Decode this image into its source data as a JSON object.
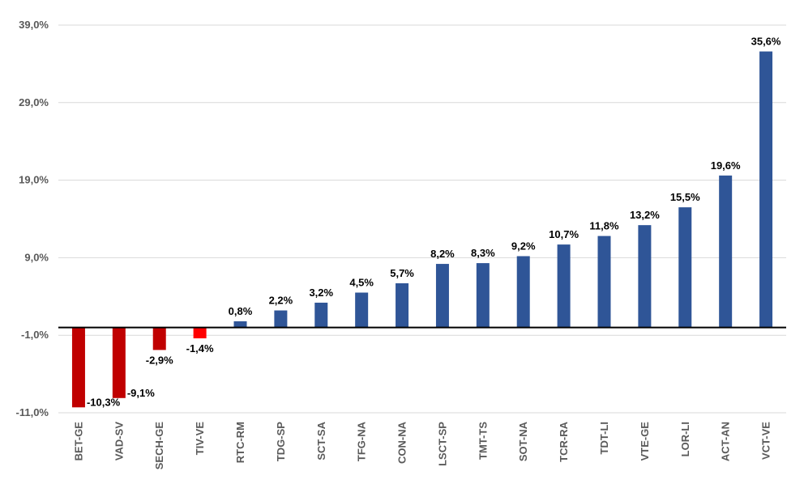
{
  "chart_data": {
    "type": "bar",
    "title": "",
    "xlabel": "",
    "ylabel": "",
    "ylim": [
      -11,
      39
    ],
    "yticks": [
      -11,
      -1,
      9,
      19,
      29,
      39
    ],
    "ytick_labels": [
      "-11,0%",
      "-1,0%",
      "9,0%",
      "19,0%",
      "29,0%",
      "39,0%"
    ],
    "grid": true,
    "legend": "none",
    "categories": [
      "BET-GE",
      "VAD-SV",
      "SECH-GE",
      "TIV-VE",
      "RTC-RM",
      "TDG-SP",
      "SCT-SA",
      "TFG-NA",
      "CON-NA",
      "LSCT-SP",
      "TMT-TS",
      "SOT-NA",
      "TCR-RA",
      "TDT-LI",
      "VTE-GE",
      "LOR-LI",
      "ACT-AN",
      "VCT-VE"
    ],
    "values": [
      -10.3,
      -9.1,
      -2.9,
      -1.4,
      0.8,
      2.2,
      3.2,
      4.5,
      5.7,
      8.2,
      8.3,
      9.2,
      10.7,
      11.8,
      13.2,
      15.5,
      19.6,
      35.6
    ],
    "value_labels": [
      "-10,3%",
      "-9,1%",
      "-2,9%",
      "-1,4%",
      "0,8%",
      "2,2%",
      "3,2%",
      "4,5%",
      "5,7%",
      "8,2%",
      "8,3%",
      "9,2%",
      "10,7%",
      "11,8%",
      "13,2%",
      "15,5%",
      "19,6%",
      "35,6%"
    ],
    "bar_colors": [
      "#c00000",
      "#c00000",
      "#c00000",
      "#ff0000",
      "#2f5597",
      "#2f5597",
      "#2f5597",
      "#2f5597",
      "#2f5597",
      "#2f5597",
      "#2f5597",
      "#2f5597",
      "#2f5597",
      "#2f5597",
      "#2f5597",
      "#2f5597",
      "#2f5597",
      "#2f5597"
    ]
  }
}
